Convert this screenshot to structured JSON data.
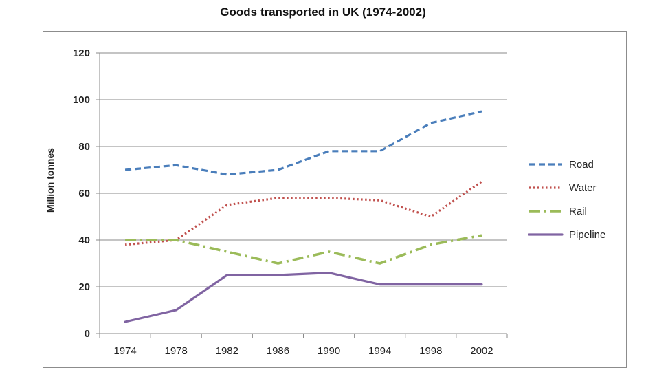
{
  "chart_data": {
    "type": "line",
    "title": "Goods transported in  UK (1974-2002)",
    "xlabel": "",
    "ylabel": "Million tonnes",
    "ylim": [
      0,
      120
    ],
    "yticks": [
      0,
      20,
      40,
      60,
      80,
      100,
      120
    ],
    "grid": true,
    "legend_position": "right",
    "categories": [
      "1974",
      "1978",
      "1982",
      "1986",
      "1990",
      "1994",
      "1998",
      "2002"
    ],
    "series": [
      {
        "name": "Road",
        "color": "#4a7ebb",
        "dash": "dashed",
        "values": [
          70,
          72,
          68,
          70,
          78,
          78,
          90,
          95
        ]
      },
      {
        "name": "Water",
        "color": "#c0504d",
        "dash": "dotted",
        "values": [
          38,
          40,
          55,
          58,
          58,
          57,
          50,
          65
        ]
      },
      {
        "name": "Rail",
        "color": "#9bbb59",
        "dash": "dash-dot",
        "values": [
          40,
          40,
          35,
          30,
          35,
          30,
          38,
          42
        ]
      },
      {
        "name": "Pipeline",
        "color": "#8064a2",
        "dash": "solid",
        "values": [
          5,
          10,
          25,
          25,
          26,
          21,
          21,
          21
        ]
      }
    ]
  }
}
